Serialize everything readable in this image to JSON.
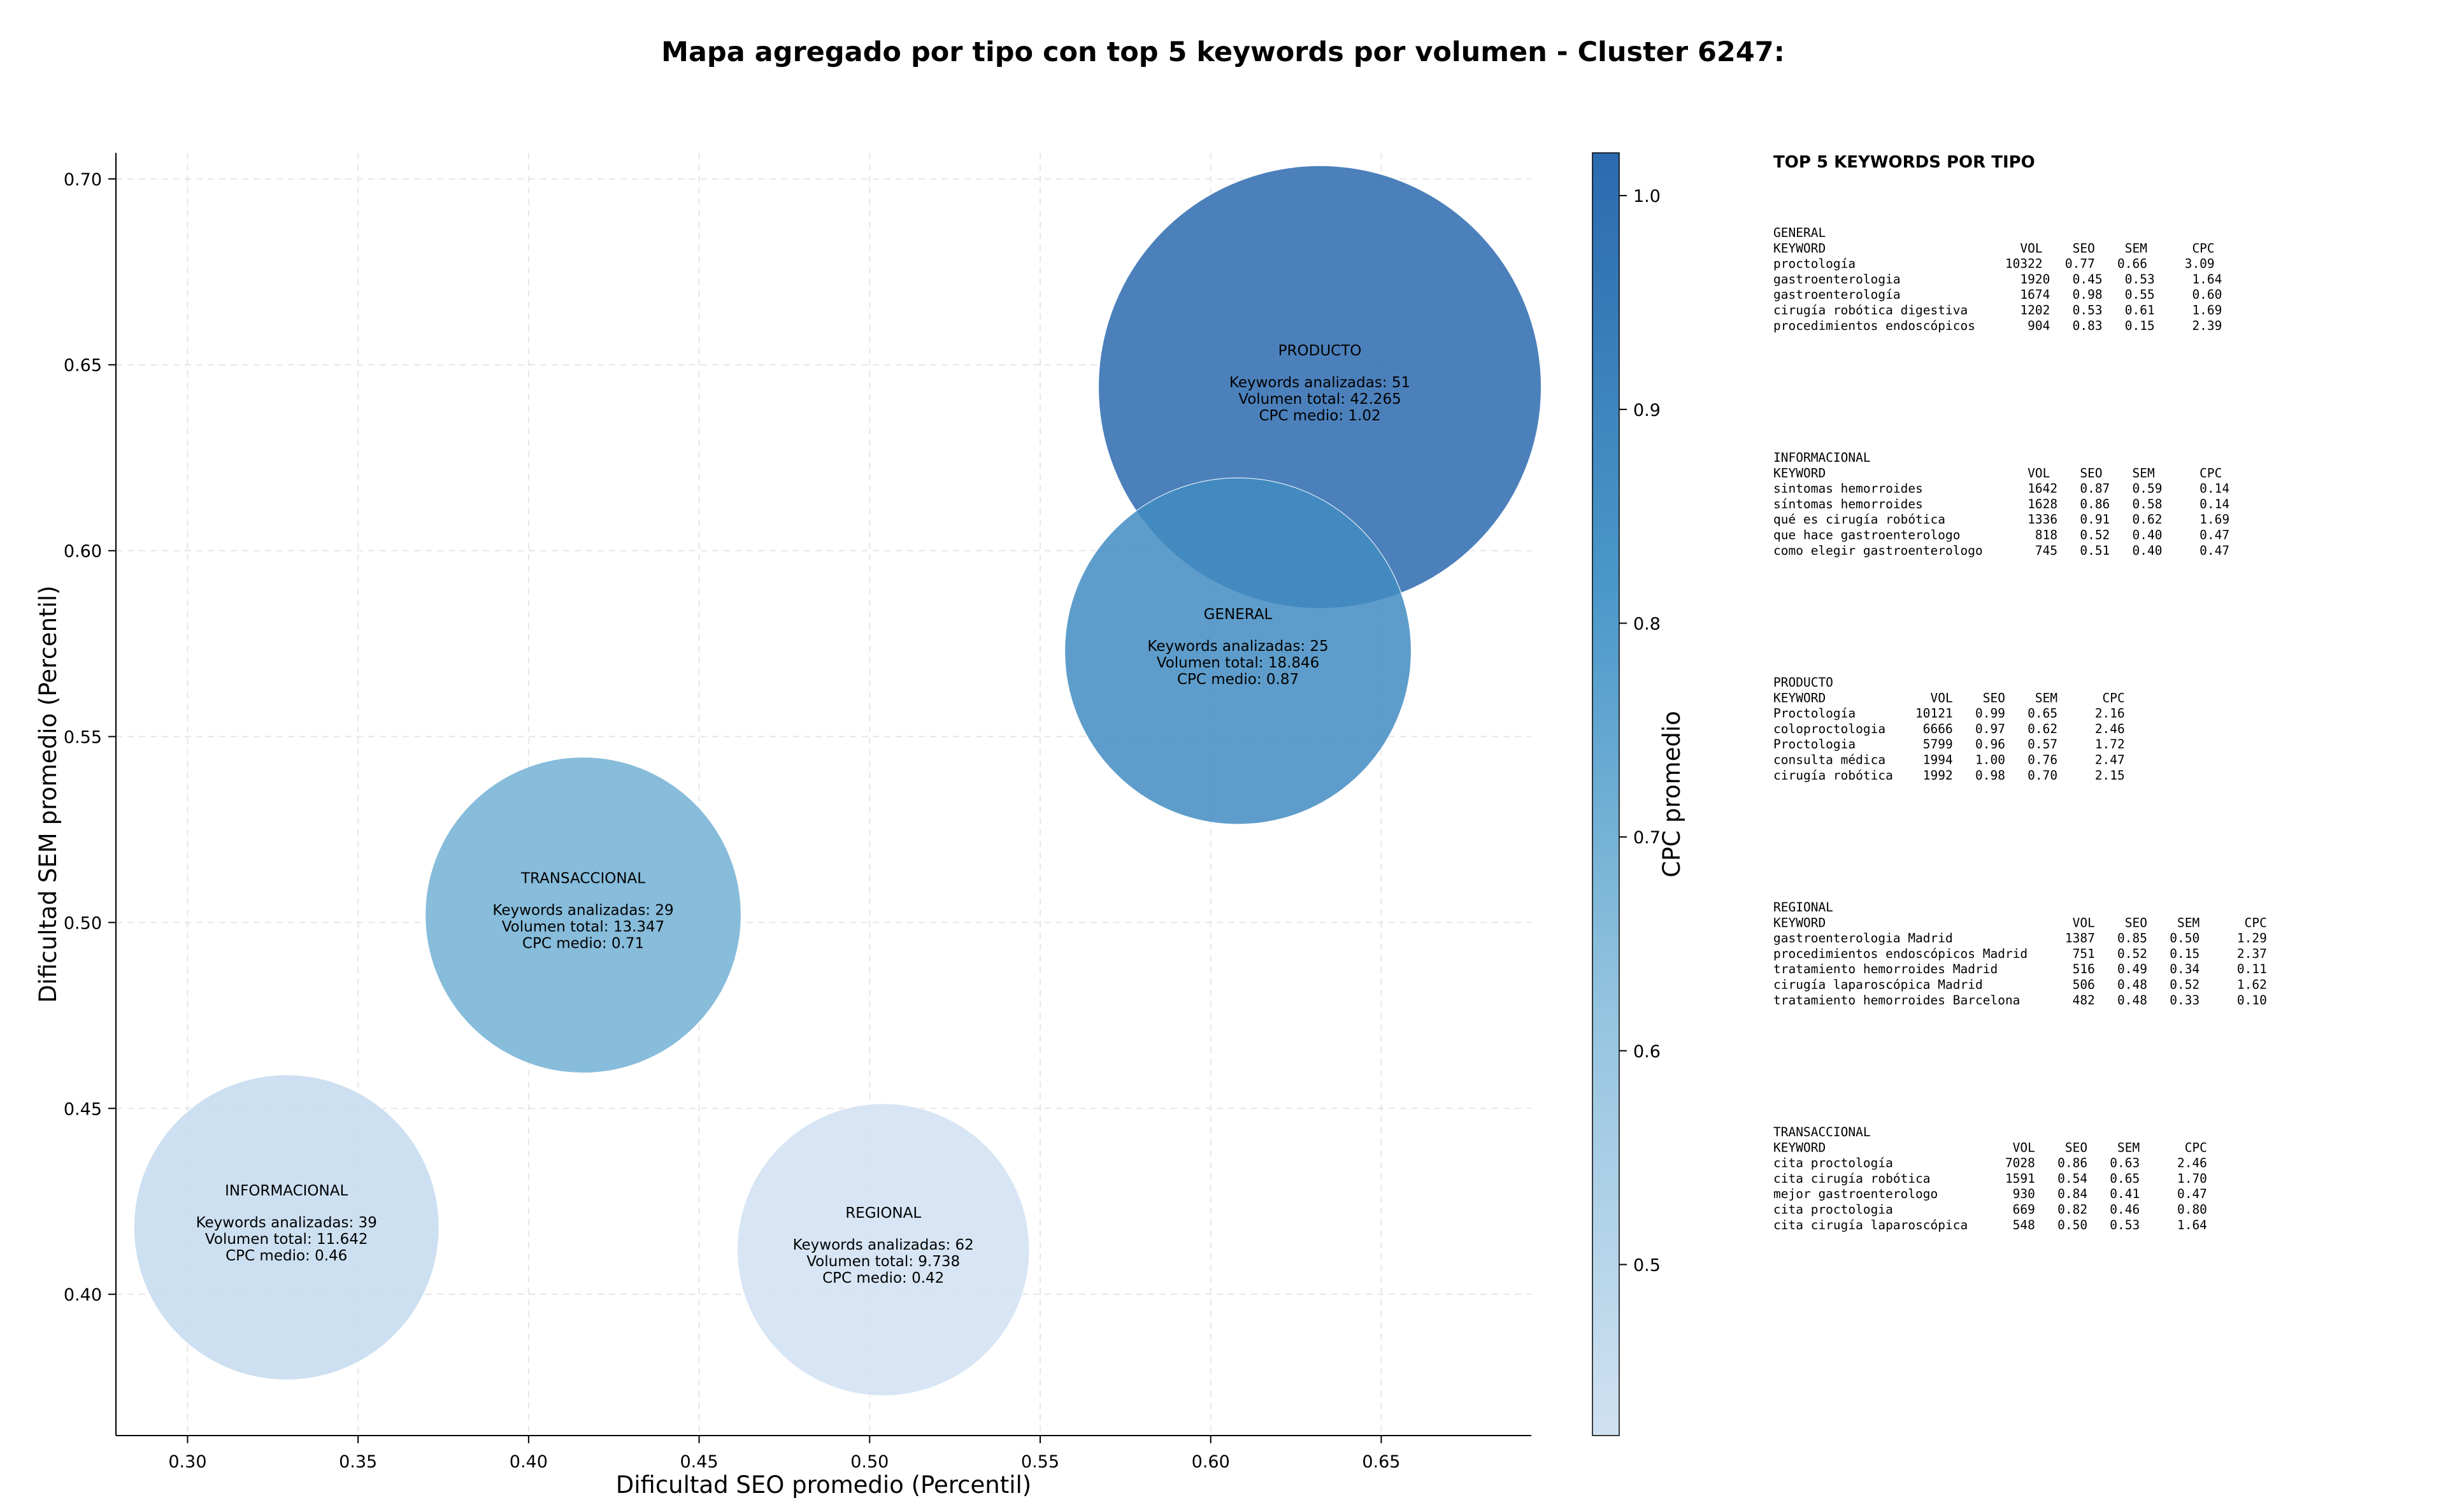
{
  "chart_data": {
    "type": "scatter",
    "title": "Mapa agregado por tipo con top 5 keywords por volumen - Cluster 6247:",
    "xlabel": "Dificultad SEO promedio (Percentil)",
    "ylabel": "Dificultad SEM promedio (Percentil)",
    "xlim": [
      0.279,
      0.694
    ],
    "ylim": [
      0.362,
      0.707
    ],
    "xticks": [
      "0.30",
      "0.35",
      "0.40",
      "0.45",
      "0.50",
      "0.55",
      "0.60",
      "0.65"
    ],
    "yticks": [
      "0.40",
      "0.45",
      "0.50",
      "0.55",
      "0.60",
      "0.65",
      "0.70"
    ],
    "grid": true,
    "colorbar": {
      "label": "CPC promedio",
      "range": [
        0.42,
        1.02
      ],
      "ticks": [
        "0.5",
        "0.6",
        "0.7",
        "0.8",
        "0.9",
        "1.0"
      ]
    },
    "bubbles": [
      {
        "label": "PRODUCTO",
        "x": 0.632,
        "y": 0.644,
        "cpc": 1.02,
        "keywords": 51,
        "line1": "Keywords analizadas: 51",
        "line2": "Volumen total: 42.265",
        "line3": "CPC medio: 1.02"
      },
      {
        "label": "GENERAL",
        "x": 0.608,
        "y": 0.573,
        "cpc": 0.87,
        "keywords": 25,
        "line1": "Keywords analizadas: 25",
        "line2": "Volumen total: 18.846",
        "line3": "CPC medio: 0.87"
      },
      {
        "label": "TRANSACCIONAL",
        "x": 0.416,
        "y": 0.502,
        "cpc": 0.71,
        "keywords": 29,
        "line1": "Keywords analizadas: 29",
        "line2": "Volumen total: 13.347",
        "line3": "CPC medio: 0.71"
      },
      {
        "label": "INFORMACIONAL",
        "x": 0.329,
        "y": 0.418,
        "cpc": 0.46,
        "keywords": 39,
        "line1": "Keywords analizadas: 39",
        "line2": "Volumen total: 11.642",
        "line3": "CPC medio: 0.46"
      },
      {
        "label": "REGIONAL",
        "x": 0.504,
        "y": 0.412,
        "cpc": 0.42,
        "keywords": 62,
        "line1": "Keywords analizadas: 62",
        "line2": "Volumen total: 9.738",
        "line3": "CPC medio: 0.42"
      }
    ]
  },
  "side_panel": {
    "title": "TOP 5 KEYWORDS POR TIPO",
    "groups": [
      {
        "lines": [
          "GENERAL",
          "KEYWORD                          VOL    SEO    SEM      CPC",
          "proctología                    10322   0.77   0.66     3.09",
          "gastroenterologia                1920   0.45   0.53     1.64",
          "gastroenterología                1674   0.98   0.55     0.60",
          "cirugía robótica digestiva       1202   0.53   0.61     1.69",
          "procedimientos endoscópicos       904   0.83   0.15     2.39"
        ]
      },
      {
        "lines": [
          "INFORMACIONAL",
          "KEYWORD                           VOL    SEO    SEM      CPC",
          "sintomas hemorroides              1642   0.87   0.59     0.14",
          "síntomas hemorroides              1628   0.86   0.58     0.14",
          "qué es cirugía robótica           1336   0.91   0.62     1.69",
          "que hace gastroenterologo          818   0.52   0.40     0.47",
          "como elegir gastroenterologo       745   0.51   0.40     0.47"
        ]
      },
      {
        "lines": [
          "PRODUCTO",
          "KEYWORD              VOL    SEO    SEM      CPC",
          "Proctología        10121   0.99   0.65     2.16",
          "coloproctologia     6666   0.97   0.62     2.46",
          "Proctologia         5799   0.96   0.57     1.72",
          "consulta médica     1994   1.00   0.76     2.47",
          "cirugía robótica    1992   0.98   0.70     2.15"
        ]
      },
      {
        "lines": [
          "REGIONAL",
          "KEYWORD                                 VOL    SEO    SEM      CPC",
          "gastroenterologia Madrid               1387   0.85   0.50     1.29",
          "procedimientos endoscópicos Madrid      751   0.52   0.15     2.37",
          "tratamiento hemorroides Madrid          516   0.49   0.34     0.11",
          "cirugía laparoscópica Madrid            506   0.48   0.52     1.62",
          "tratamiento hemorroides Barcelona       482   0.48   0.33     0.10"
        ]
      },
      {
        "lines": [
          "TRANSACCIONAL",
          "KEYWORD                         VOL    SEO    SEM      CPC",
          "cita proctología               7028   0.86   0.63     2.46",
          "cita cirugía robótica          1591   0.54   0.65     1.70",
          "mejor gastroenterologo          930   0.84   0.41     0.47",
          "cita proctologia                669   0.82   0.46     0.80",
          "cita cirugía laparoscópica      548   0.50   0.53     1.64"
        ]
      }
    ]
  }
}
